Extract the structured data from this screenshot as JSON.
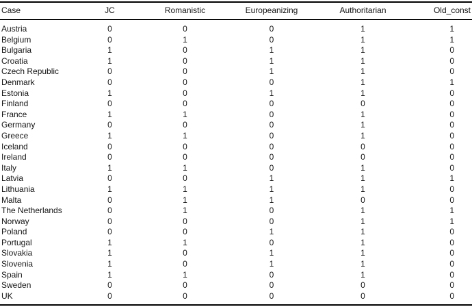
{
  "table": {
    "columns": [
      "Case",
      "JC",
      "Romanistic",
      "Europeanizing",
      "Authoritarian",
      "Old_const"
    ],
    "rows": [
      {
        "case": "Austria",
        "values": [
          "0",
          "0",
          "0",
          "1",
          "1"
        ]
      },
      {
        "case": "Belgium",
        "values": [
          "0",
          "1",
          "0",
          "1",
          "1"
        ]
      },
      {
        "case": "Bulgaria",
        "values": [
          "1",
          "0",
          "1",
          "1",
          "0"
        ]
      },
      {
        "case": "Croatia",
        "values": [
          "1",
          "0",
          "1",
          "1",
          "0"
        ]
      },
      {
        "case": "Czech Republic",
        "values": [
          "0",
          "0",
          "1",
          "1",
          "0"
        ]
      },
      {
        "case": "Denmark",
        "values": [
          "0",
          "0",
          "0",
          "1",
          "1"
        ]
      },
      {
        "case": "Estonia",
        "values": [
          "1",
          "0",
          "1",
          "1",
          "0"
        ]
      },
      {
        "case": "Finland",
        "values": [
          "0",
          "0",
          "0",
          "0",
          "0"
        ]
      },
      {
        "case": "France",
        "values": [
          "1",
          "1",
          "0",
          "1",
          "0"
        ]
      },
      {
        "case": "Germany",
        "values": [
          "0",
          "0",
          "0",
          "1",
          "0"
        ]
      },
      {
        "case": "Greece",
        "values": [
          "1",
          "1",
          "0",
          "1",
          "0"
        ]
      },
      {
        "case": "Iceland",
        "values": [
          "0",
          "0",
          "0",
          "0",
          "0"
        ]
      },
      {
        "case": "Ireland",
        "values": [
          "0",
          "0",
          "0",
          "0",
          "0"
        ]
      },
      {
        "case": "Italy",
        "values": [
          "1",
          "1",
          "0",
          "1",
          "0"
        ]
      },
      {
        "case": "Latvia",
        "values": [
          "0",
          "0",
          "1",
          "1",
          "1"
        ]
      },
      {
        "case": "Lithuania",
        "values": [
          "1",
          "1",
          "1",
          "1",
          "0"
        ]
      },
      {
        "case": "Malta",
        "values": [
          "0",
          "1",
          "1",
          "0",
          "0"
        ]
      },
      {
        "case": "The Netherlands",
        "values": [
          "0",
          "1",
          "0",
          "1",
          "1"
        ]
      },
      {
        "case": "Norway",
        "values": [
          "0",
          "0",
          "0",
          "1",
          "1"
        ]
      },
      {
        "case": "Poland",
        "values": [
          "0",
          "0",
          "1",
          "1",
          "0"
        ]
      },
      {
        "case": "Portugal",
        "values": [
          "1",
          "1",
          "0",
          "1",
          "0"
        ]
      },
      {
        "case": "Slovakia",
        "values": [
          "1",
          "0",
          "1",
          "1",
          "0"
        ]
      },
      {
        "case": "Slovenia",
        "values": [
          "1",
          "0",
          "1",
          "1",
          "0"
        ]
      },
      {
        "case": "Spain",
        "values": [
          "1",
          "1",
          "0",
          "1",
          "0"
        ]
      },
      {
        "case": "Sweden",
        "values": [
          "0",
          "0",
          "0",
          "0",
          "0"
        ]
      },
      {
        "case": "UK",
        "values": [
          "0",
          "0",
          "0",
          "0",
          "0"
        ]
      }
    ],
    "colors": {
      "text": "#141414",
      "rule": "#000000",
      "background": "#ffffff"
    }
  }
}
